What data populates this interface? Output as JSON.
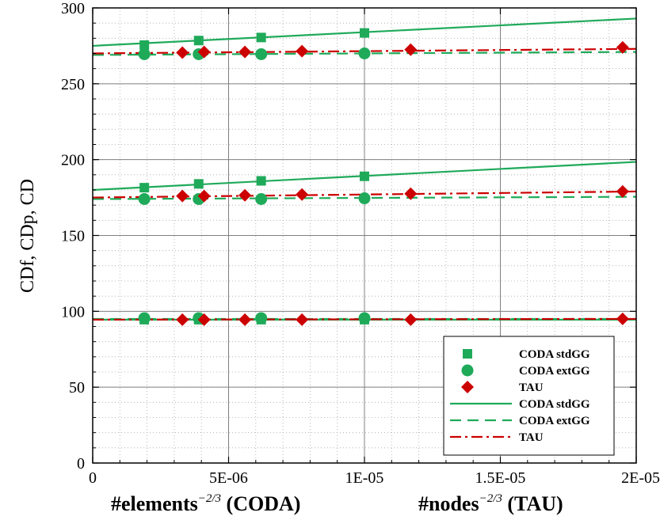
{
  "colors": {
    "coda_std": "#1faa5a",
    "coda_ext": "#1faa5a",
    "tau": "#cc0000",
    "grid_major": "#808080",
    "grid_minor": "#a8a8a8"
  },
  "chart_data": {
    "type": "scatter",
    "xlim": [
      0,
      2e-05
    ],
    "ylim": [
      0,
      300
    ],
    "grid": true,
    "legend_placement": "bottom-right",
    "xlabel_parts": {
      "left": "#elements",
      "left_exp": "−2/3",
      "left_suffix": " (CODA)",
      "right": "#nodes",
      "right_exp": "−2/3",
      "right_suffix": " (TAU)"
    },
    "ylabel": "CDf, CDp, CD",
    "x_ticks": [
      {
        "value": 0,
        "label": "0"
      },
      {
        "value": 5e-06,
        "label": "5E-06"
      },
      {
        "value": 1e-05,
        "label": "1E-05"
      },
      {
        "value": 1.5e-05,
        "label": "1.5E-05"
      },
      {
        "value": 2e-05,
        "label": "2E-05"
      }
    ],
    "y_ticks": [
      {
        "value": 0,
        "label": "0"
      },
      {
        "value": 50,
        "label": "50"
      },
      {
        "value": 100,
        "label": "100"
      },
      {
        "value": 150,
        "label": "150"
      },
      {
        "value": 200,
        "label": "200"
      },
      {
        "value": 250,
        "label": "250"
      },
      {
        "value": 300,
        "label": "300"
      }
    ],
    "markers": [
      {
        "name": "CODA stdGG",
        "marker": "square",
        "color_key": "coda_std",
        "groups": [
          {
            "x": [
              1.9e-06,
              3.9e-06,
              6.2e-06,
              1e-05
            ],
            "y": [
              275.5,
              278.5,
              280.5,
              283.5
            ]
          },
          {
            "x": [
              1.9e-06,
              3.9e-06,
              6.2e-06,
              1e-05
            ],
            "y": [
              181.5,
              184,
              186,
              189
            ]
          },
          {
            "x": [
              1.9e-06,
              3.9e-06,
              6.2e-06,
              1e-05
            ],
            "y": [
              94.5,
              94.5,
              94.5,
              94.5
            ]
          }
        ]
      },
      {
        "name": "CODA extGG",
        "marker": "circle",
        "color_key": "coda_ext",
        "groups": [
          {
            "x": [
              1.9e-06,
              3.9e-06,
              6.2e-06,
              1e-05
            ],
            "y": [
              269.5,
              269.5,
              269.5,
              270
            ]
          },
          {
            "x": [
              1.9e-06,
              3.9e-06,
              6.2e-06,
              1e-05
            ],
            "y": [
              174,
              174,
              174,
              174.5
            ]
          },
          {
            "x": [
              1.9e-06,
              3.9e-06,
              6.2e-06,
              1e-05
            ],
            "y": [
              95.5,
              95.5,
              95.5,
              95.5
            ]
          }
        ]
      },
      {
        "name": "TAU",
        "marker": "diamond",
        "color_key": "tau",
        "groups": [
          {
            "x": [
              3.3e-06,
              4.1e-06,
              5.6e-06,
              7.7e-06,
              1.17e-05,
              1.95e-05
            ],
            "y": [
              270.5,
              271,
              271,
              271.5,
              272.5,
              274
            ]
          },
          {
            "x": [
              3.3e-06,
              4.1e-06,
              5.6e-06,
              7.7e-06,
              1.17e-05,
              1.95e-05
            ],
            "y": [
              176,
              176,
              176.5,
              177,
              177.5,
              179
            ]
          },
          {
            "x": [
              3.3e-06,
              4.1e-06,
              5.6e-06,
              7.7e-06,
              1.17e-05,
              1.95e-05
            ],
            "y": [
              94.5,
              94.5,
              94.5,
              94.5,
              94.5,
              95
            ]
          }
        ]
      }
    ],
    "lines": [
      {
        "name": "CODA stdGG",
        "style": "solid",
        "color_key": "coda_std",
        "segments": [
          {
            "x": [
              0,
              2e-05
            ],
            "y": [
              275,
              293
            ]
          },
          {
            "x": [
              0,
              2e-05
            ],
            "y": [
              180,
              198.5
            ]
          },
          {
            "x": [
              0,
              2e-05
            ],
            "y": [
              94.5,
              94.5
            ]
          }
        ]
      },
      {
        "name": "CODA extGG",
        "style": "dashed",
        "color_key": "coda_ext",
        "segments": [
          {
            "x": [
              0,
              2e-05
            ],
            "y": [
              269,
              271
            ]
          },
          {
            "x": [
              0,
              2e-05
            ],
            "y": [
              174,
              175.5
            ]
          },
          {
            "x": [
              0,
              2e-05
            ],
            "y": [
              95,
              95
            ]
          }
        ]
      },
      {
        "name": "TAU",
        "style": "dashdot",
        "color_key": "tau",
        "segments": [
          {
            "x": [
              0,
              2e-05
            ],
            "y": [
              270,
              273
            ]
          },
          {
            "x": [
              0,
              2e-05
            ],
            "y": [
              175,
              179
            ]
          },
          {
            "x": [
              0,
              2e-05
            ],
            "y": [
              94.5,
              95
            ]
          }
        ]
      }
    ]
  }
}
